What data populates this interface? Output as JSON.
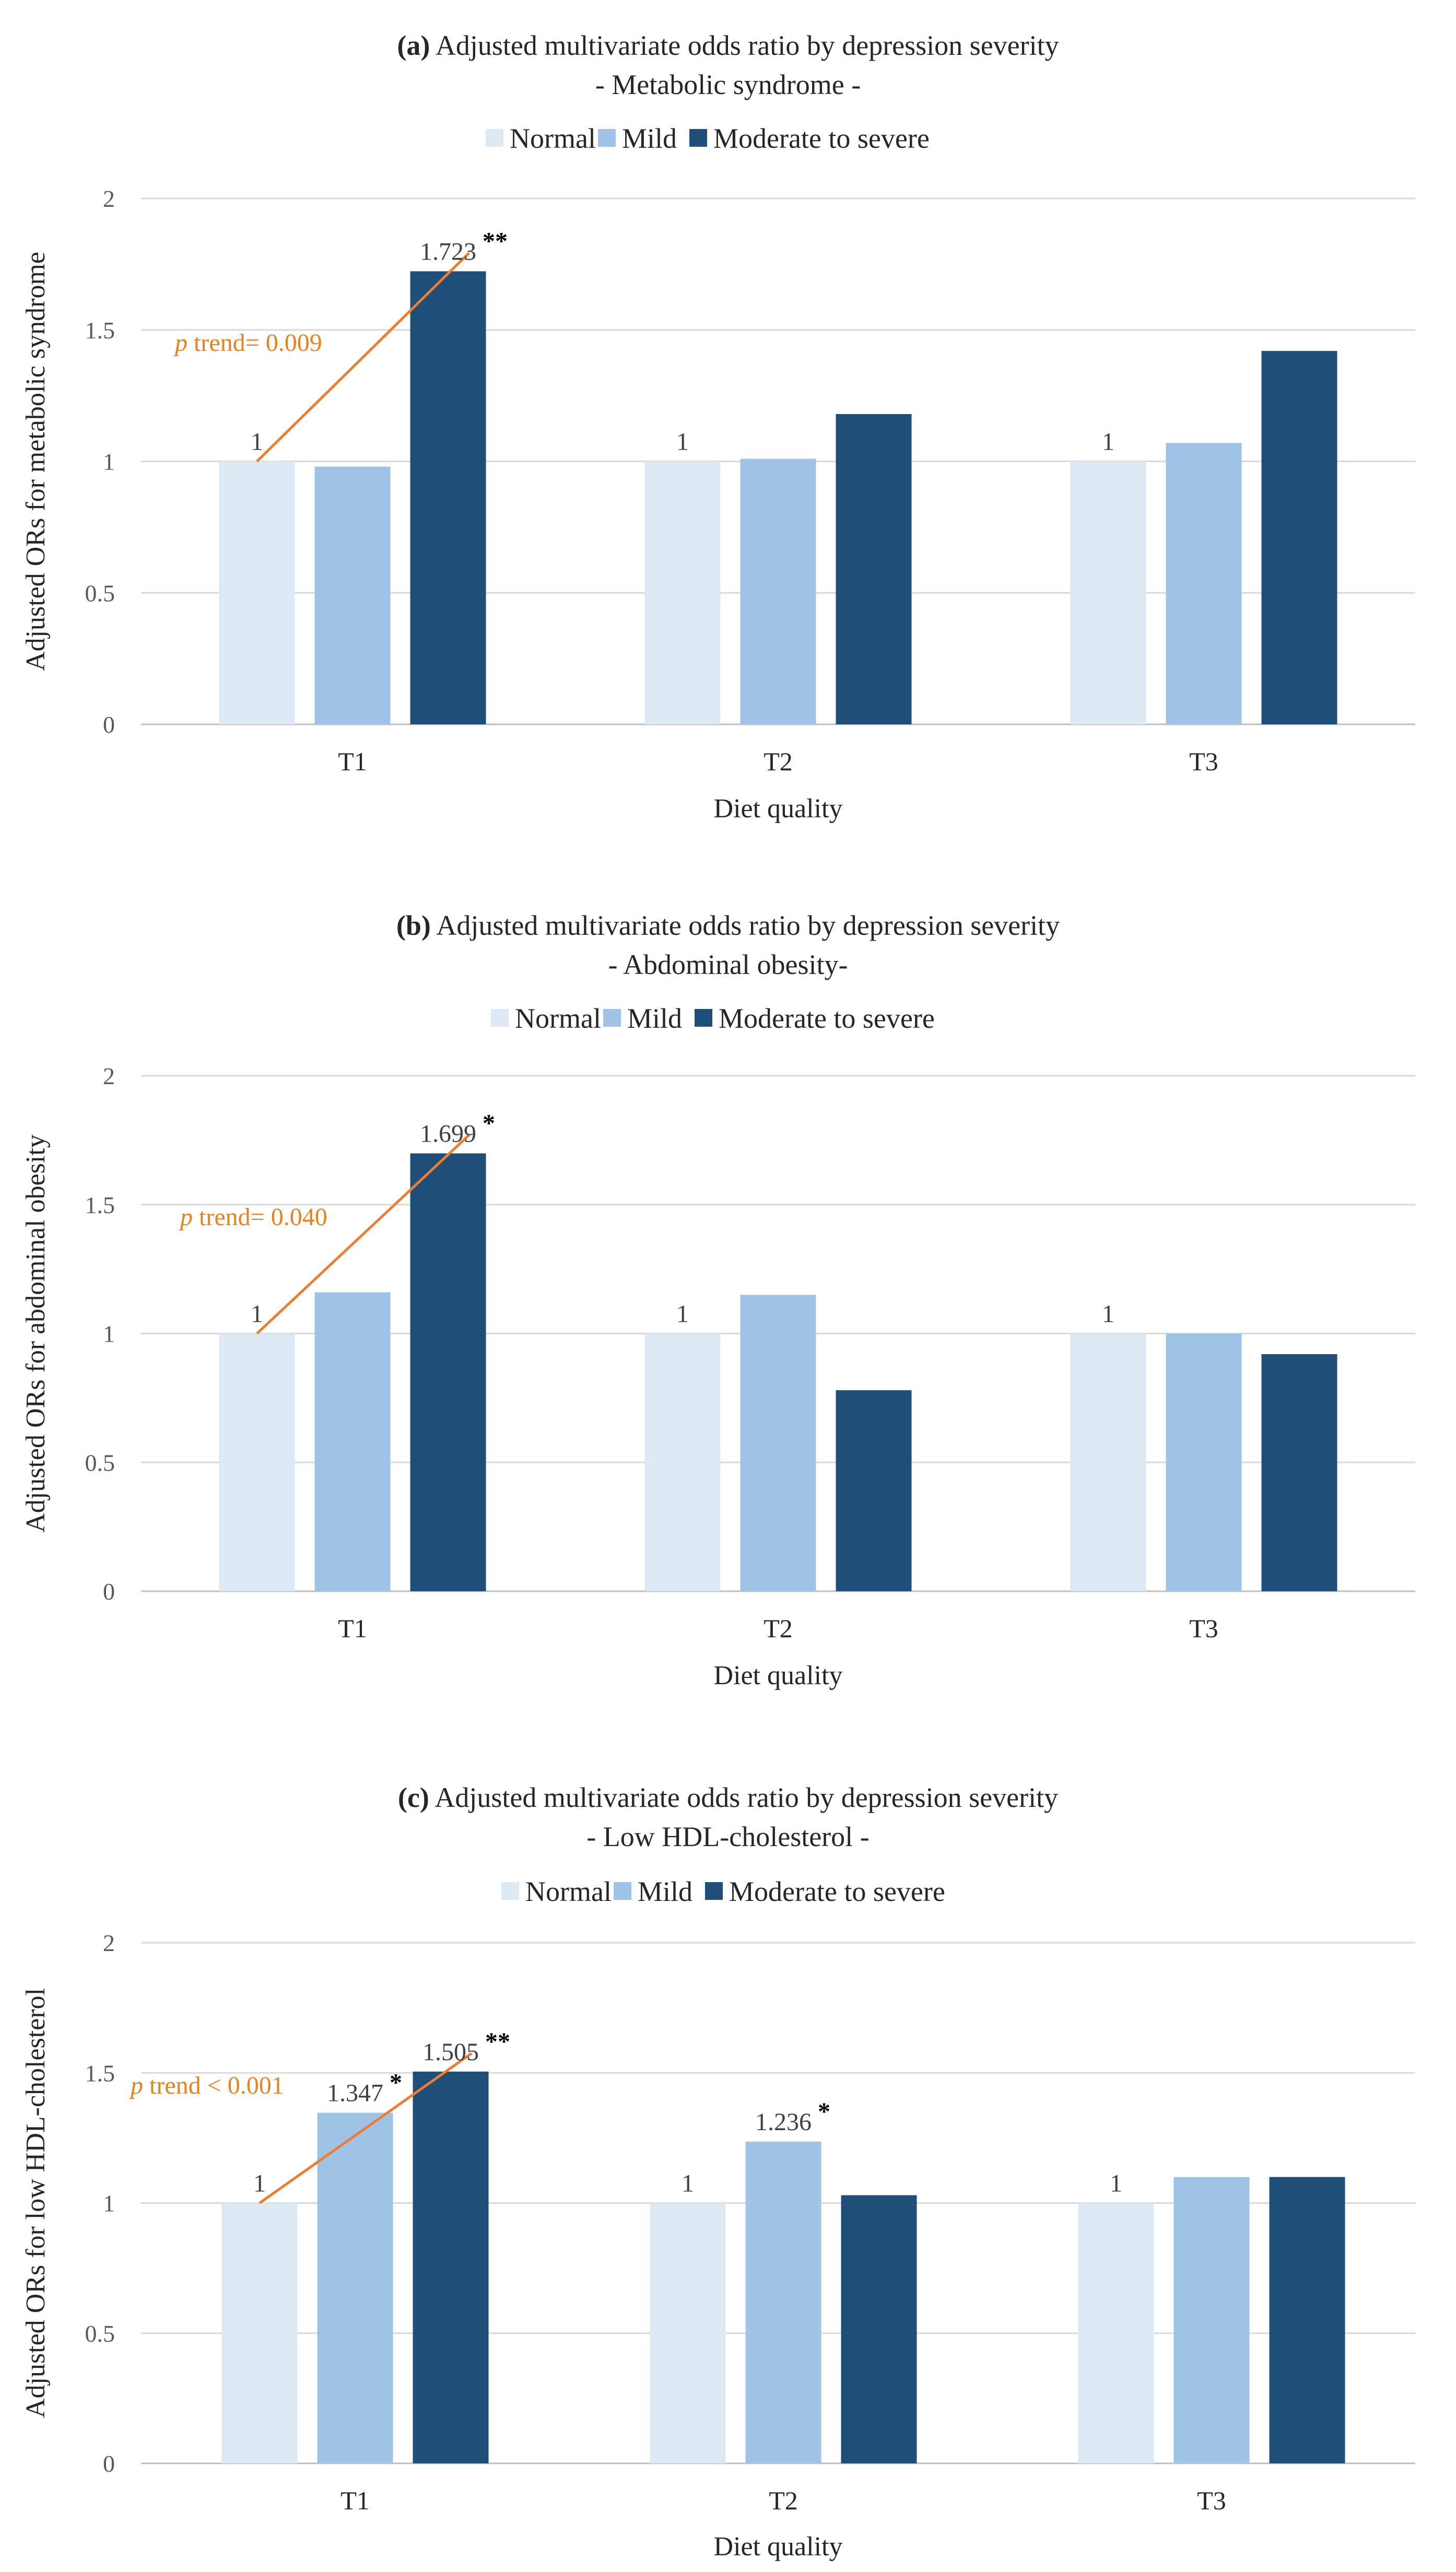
{
  "colors": {
    "normal": "#dde8f5",
    "mild": "#9fc3e6",
    "severe": "#1f4e79",
    "trend": "#ed7d31"
  },
  "legend": [
    "Normal",
    "Mild",
    "Moderate to severe"
  ],
  "chart_data": [
    {
      "type": "bar",
      "title_prefix": "(a)",
      "title": "Adjusted multivariate odds ratio by depression severity",
      "subtitle": "- Metabolic syndrome -",
      "categories": [
        "T1",
        "T2",
        "T3"
      ],
      "series": [
        {
          "name": "Normal",
          "values": [
            1,
            1,
            1
          ]
        },
        {
          "name": "Mild",
          "values": [
            0.98,
            1.01,
            1.07
          ]
        },
        {
          "name": "Moderate to severe",
          "values": [
            1.723,
            1.18,
            1.42
          ]
        }
      ],
      "data_labels": [
        {
          "category": 0,
          "series": 0,
          "text": "1"
        },
        {
          "category": 0,
          "series": 2,
          "text": "1.723",
          "star": "**"
        },
        {
          "category": 1,
          "series": 0,
          "text": "1"
        },
        {
          "category": 2,
          "series": 0,
          "text": "1"
        }
      ],
      "trend": {
        "label_italic": "p",
        "label_rest": " trend= 0.009"
      },
      "xlabel": "Diet quality",
      "ylabel": "Adjusted ORs for metabolic syndrome",
      "ylim": [
        0,
        2
      ],
      "yticks": [
        "0",
        "0.5",
        "1",
        "1.5",
        "2"
      ]
    },
    {
      "type": "bar",
      "title_prefix": "(b)",
      "title": "Adjusted multivariate odds ratio by depression severity",
      "subtitle": "- Abdominal obesity-",
      "categories": [
        "T1",
        "T2",
        "T3"
      ],
      "series": [
        {
          "name": "Normal",
          "values": [
            1,
            1,
            1
          ]
        },
        {
          "name": "Mild",
          "values": [
            1.16,
            1.15,
            1.0
          ]
        },
        {
          "name": "Moderate to severe",
          "values": [
            1.699,
            0.78,
            0.92
          ]
        }
      ],
      "data_labels": [
        {
          "category": 0,
          "series": 0,
          "text": "1"
        },
        {
          "category": 0,
          "series": 2,
          "text": "1.699",
          "star": "*"
        },
        {
          "category": 1,
          "series": 0,
          "text": "1"
        },
        {
          "category": 2,
          "series": 0,
          "text": "1"
        }
      ],
      "trend": {
        "label_italic": "p",
        "label_rest": " trend= 0.040"
      },
      "xlabel": "Diet quality",
      "ylabel": "Adjusted ORs for abdominal obesity",
      "ylim": [
        0,
        2
      ],
      "yticks": [
        "0",
        "0.5",
        "1",
        "1.5",
        "2"
      ]
    },
    {
      "type": "bar",
      "title_prefix": "(c)",
      "title": "Adjusted multivariate odds ratio by depression severity",
      "subtitle": "- Low HDL-cholesterol -",
      "categories": [
        "T1",
        "T2",
        "T3"
      ],
      "series": [
        {
          "name": "Normal",
          "values": [
            1,
            1,
            1
          ]
        },
        {
          "name": "Mild",
          "values": [
            1.347,
            1.236,
            1.1
          ]
        },
        {
          "name": "Moderate to severe",
          "values": [
            1.505,
            1.03,
            1.1
          ]
        }
      ],
      "data_labels": [
        {
          "category": 0,
          "series": 0,
          "text": "1"
        },
        {
          "category": 0,
          "series": 1,
          "text": "1.347",
          "star": "*"
        },
        {
          "category": 0,
          "series": 2,
          "text": "1.505",
          "star": "**"
        },
        {
          "category": 1,
          "series": 0,
          "text": "1"
        },
        {
          "category": 1,
          "series": 1,
          "text": "1.236",
          "star": "*"
        },
        {
          "category": 2,
          "series": 0,
          "text": "1"
        }
      ],
      "trend": {
        "label_italic": "p",
        "label_rest": " trend < 0.001"
      },
      "xlabel": "Diet quality",
      "ylabel": "Adjusted ORs for low HDL-cholesterol",
      "ylim": [
        0,
        2
      ],
      "yticks": [
        "0",
        "0.5",
        "1",
        "1.5",
        "2"
      ]
    }
  ]
}
